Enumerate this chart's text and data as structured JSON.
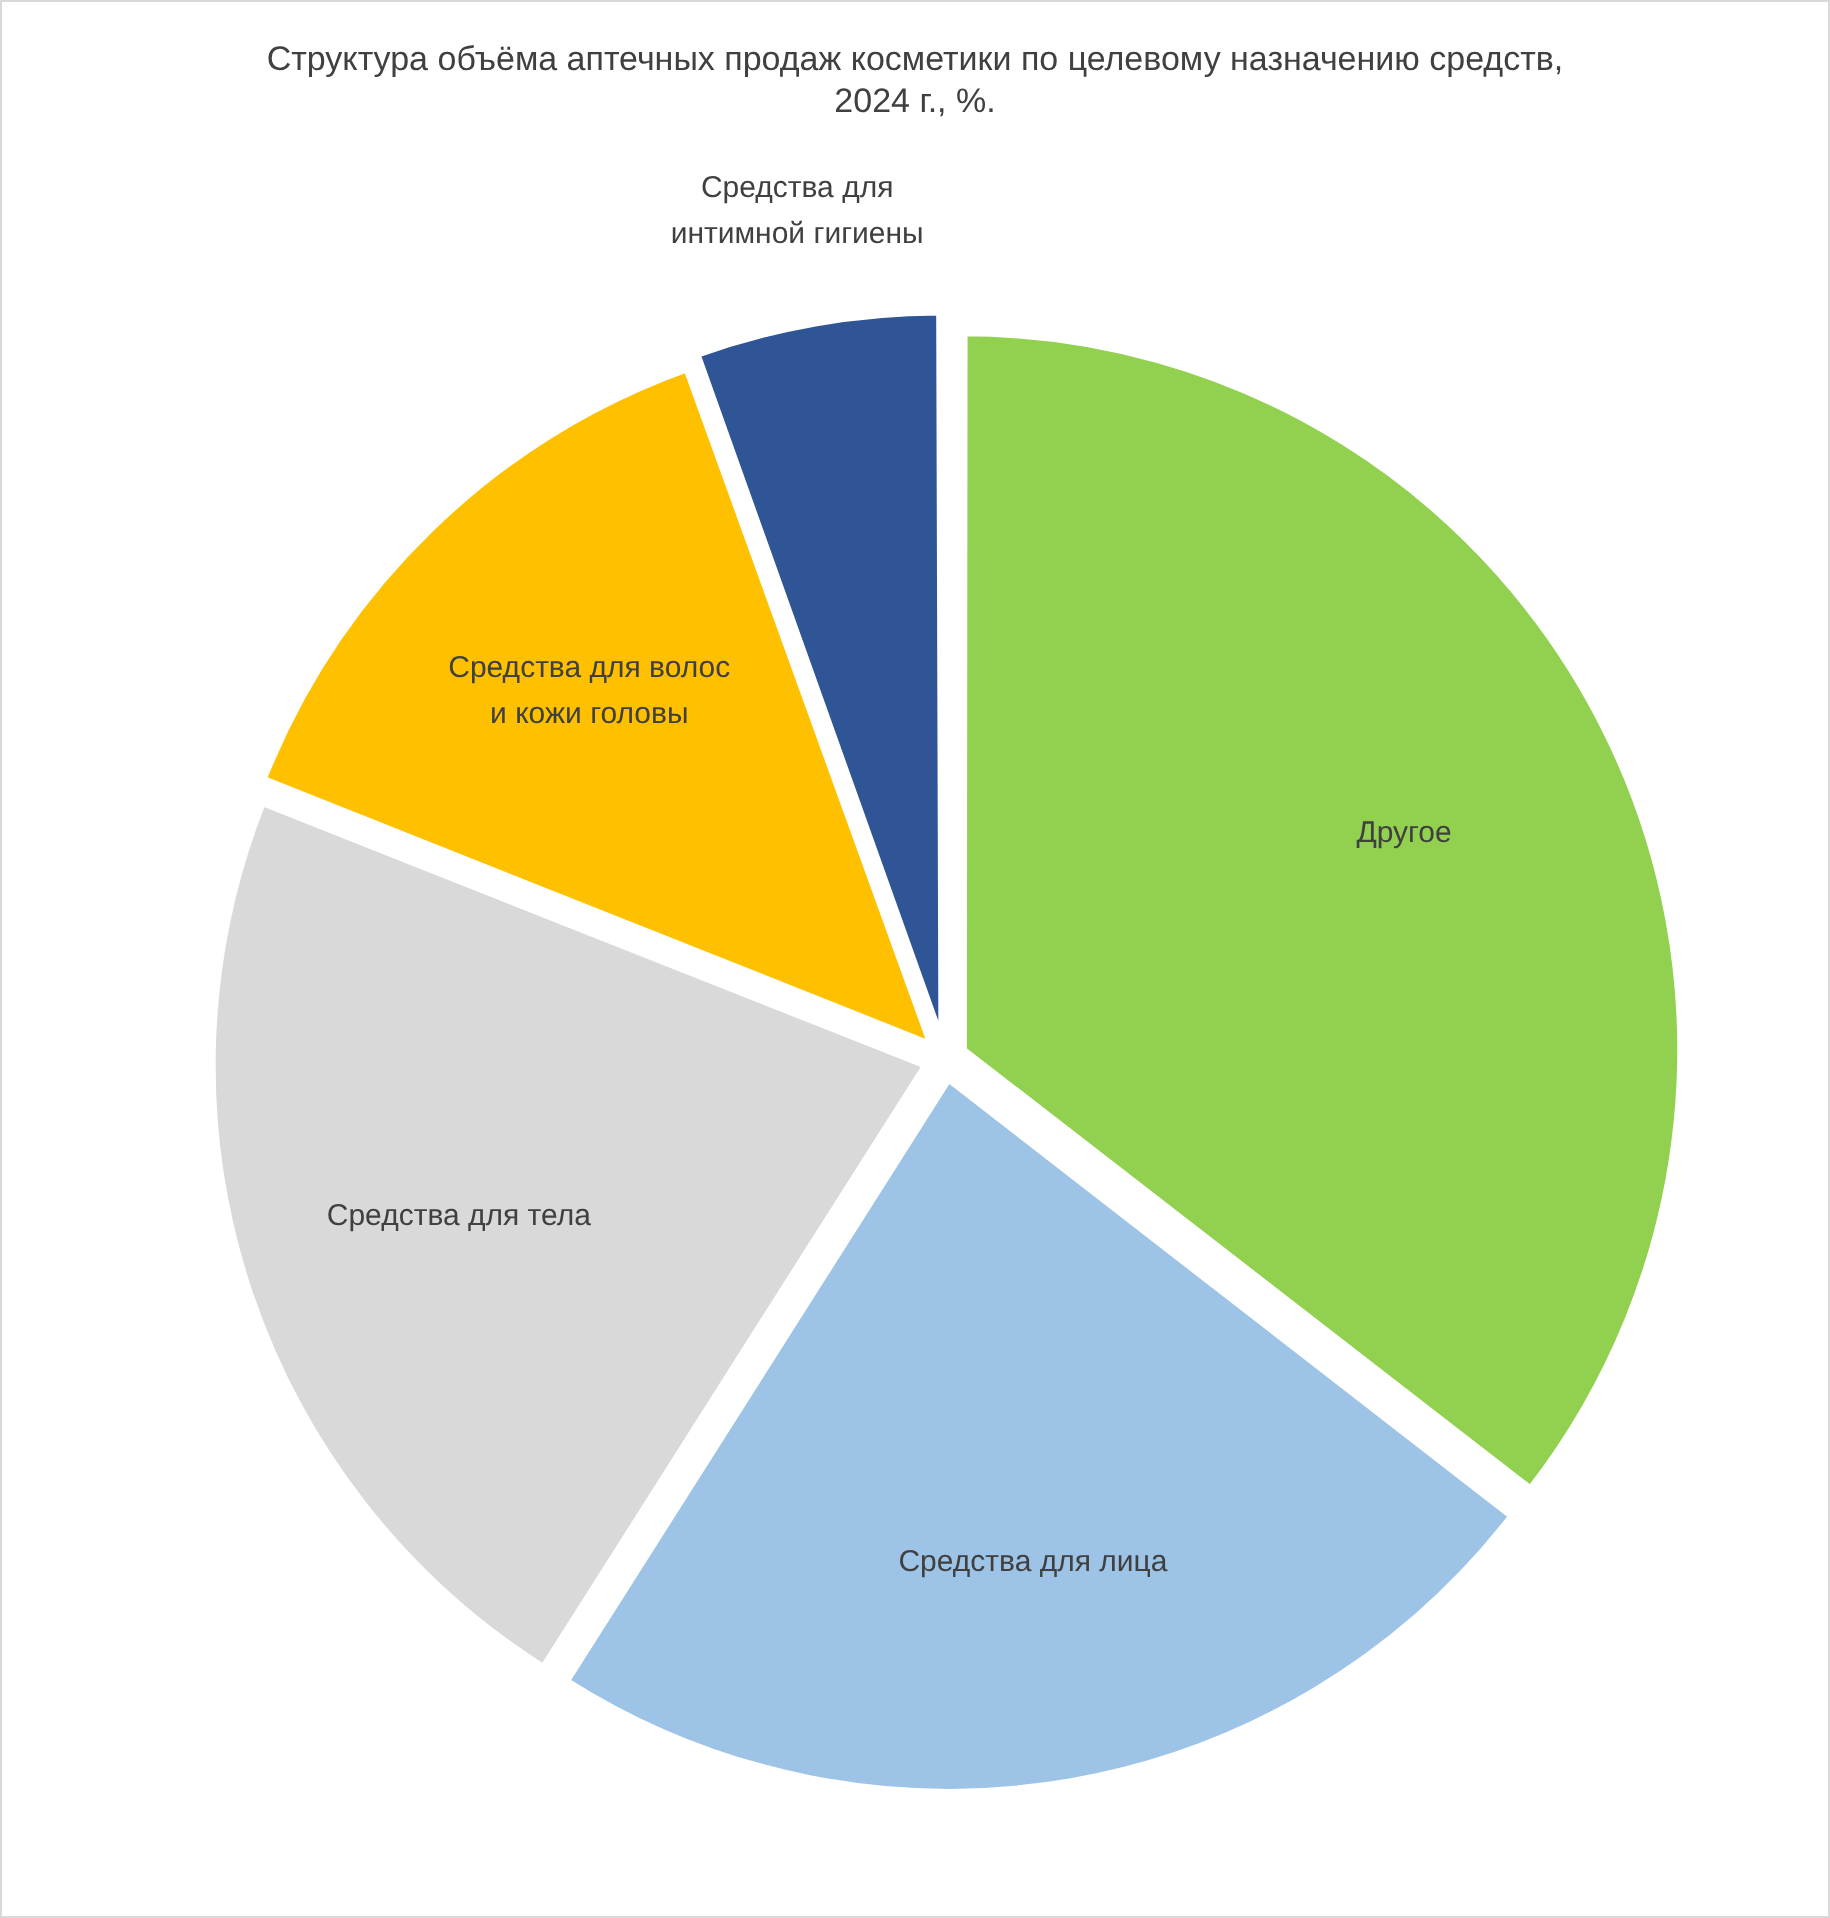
{
  "chart_data": {
    "type": "pie",
    "title": "Структура объёма аптечных продаж косметики по целевому назначению средств, 2024 г., %.",
    "categories": [
      "Другое",
      "Средства для лица",
      "Средства для тела",
      "Средства для волос и кожи головы",
      "Средства для интимной гигиены"
    ],
    "values": [
      35.5,
      23.5,
      22,
      13.5,
      5.5
    ],
    "colors": [
      "#92d050",
      "#9dc3e6",
      "#d9d9d9",
      "#ffc000",
      "#2f5597"
    ],
    "legend": false
  }
}
